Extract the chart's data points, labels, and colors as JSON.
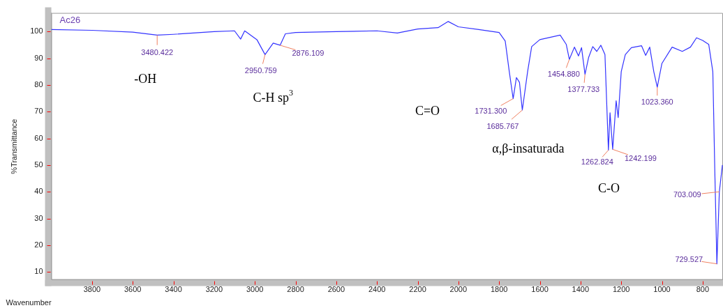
{
  "chart_data": {
    "type": "line",
    "xlabel": "Wavenumber",
    "ylabel": "%Transmittance",
    "xlim": [
      4000,
      700
    ],
    "ylim": [
      7,
      107
    ],
    "xticks": [
      3800,
      3600,
      3400,
      3200,
      3000,
      2800,
      2600,
      2400,
      2200,
      2000,
      1800,
      1600,
      1400,
      1200,
      1000,
      800
    ],
    "yticks": [
      10,
      20,
      30,
      40,
      50,
      60,
      70,
      80,
      90,
      100
    ],
    "grid": false,
    "legend": false,
    "marker": "none",
    "line_style": "solid",
    "series": [
      {
        "name": "Ac26",
        "color": "#3333ff",
        "x": [
          4000,
          3800,
          3600,
          3480,
          3400,
          3200,
          3100,
          3070,
          3050,
          2990,
          2950,
          2910,
          2876,
          2850,
          2800,
          2600,
          2400,
          2300,
          2200,
          2100,
          2050,
          2000,
          1900,
          1800,
          1770,
          1750,
          1731,
          1715,
          1700,
          1686,
          1660,
          1640,
          1600,
          1500,
          1470,
          1455,
          1430,
          1410,
          1395,
          1378,
          1360,
          1340,
          1320,
          1300,
          1280,
          1263,
          1255,
          1242,
          1225,
          1215,
          1200,
          1180,
          1150,
          1100,
          1080,
          1060,
          1040,
          1023,
          1000,
          950,
          900,
          860,
          830,
          800,
          770,
          750,
          740,
          730,
          718,
          703
        ],
        "values": [
          100.8,
          100.5,
          99.8,
          98.7,
          99,
          100,
          100.3,
          97.2,
          100.3,
          97,
          91.4,
          95.7,
          94.9,
          99.2,
          99.7,
          100,
          100.3,
          99.5,
          101,
          101.5,
          103.8,
          101.8,
          100.8,
          99.7,
          96.5,
          85,
          74.9,
          82.8,
          81,
          70.6,
          85,
          94.4,
          97,
          98.7,
          95.2,
          89.6,
          94.2,
          90.9,
          94,
          84,
          90.4,
          94.4,
          92.6,
          94.9,
          91.4,
          55.6,
          69.6,
          55.9,
          74.1,
          67.8,
          85,
          91.4,
          94,
          94.7,
          91.1,
          94.2,
          85,
          79.2,
          88.1,
          94.2,
          92.6,
          94.2,
          97.7,
          96.7,
          95.2,
          85,
          47,
          13,
          40,
          50
        ]
      }
    ],
    "annotations": [
      {
        "text": "3480.422",
        "x": 3480,
        "y": 98.7
      },
      {
        "text": "2950.759",
        "x": 2950,
        "y": 91.4
      },
      {
        "text": "2876.109",
        "x": 2876,
        "y": 94.9
      },
      {
        "text": "1731.300",
        "x": 1731,
        "y": 74.9
      },
      {
        "text": "1685.767",
        "x": 1686,
        "y": 70.6
      },
      {
        "text": "1454.880",
        "x": 1455,
        "y": 89.6
      },
      {
        "text": "1377.733",
        "x": 1378,
        "y": 84
      },
      {
        "text": "1262.824",
        "x": 1263,
        "y": 55.6
      },
      {
        "text": "1242.199",
        "x": 1242,
        "y": 55.9
      },
      {
        "text": "1023.360",
        "x": 1023,
        "y": 79.2
      },
      {
        "text": "703.009",
        "x": 718,
        "y": 40
      },
      {
        "text": "729.527",
        "x": 730,
        "y": 13
      },
      "-OH",
      "C-H sp$^{3}$",
      "C=O",
      "α,β-insaturada",
      "C-O"
    ]
  }
}
